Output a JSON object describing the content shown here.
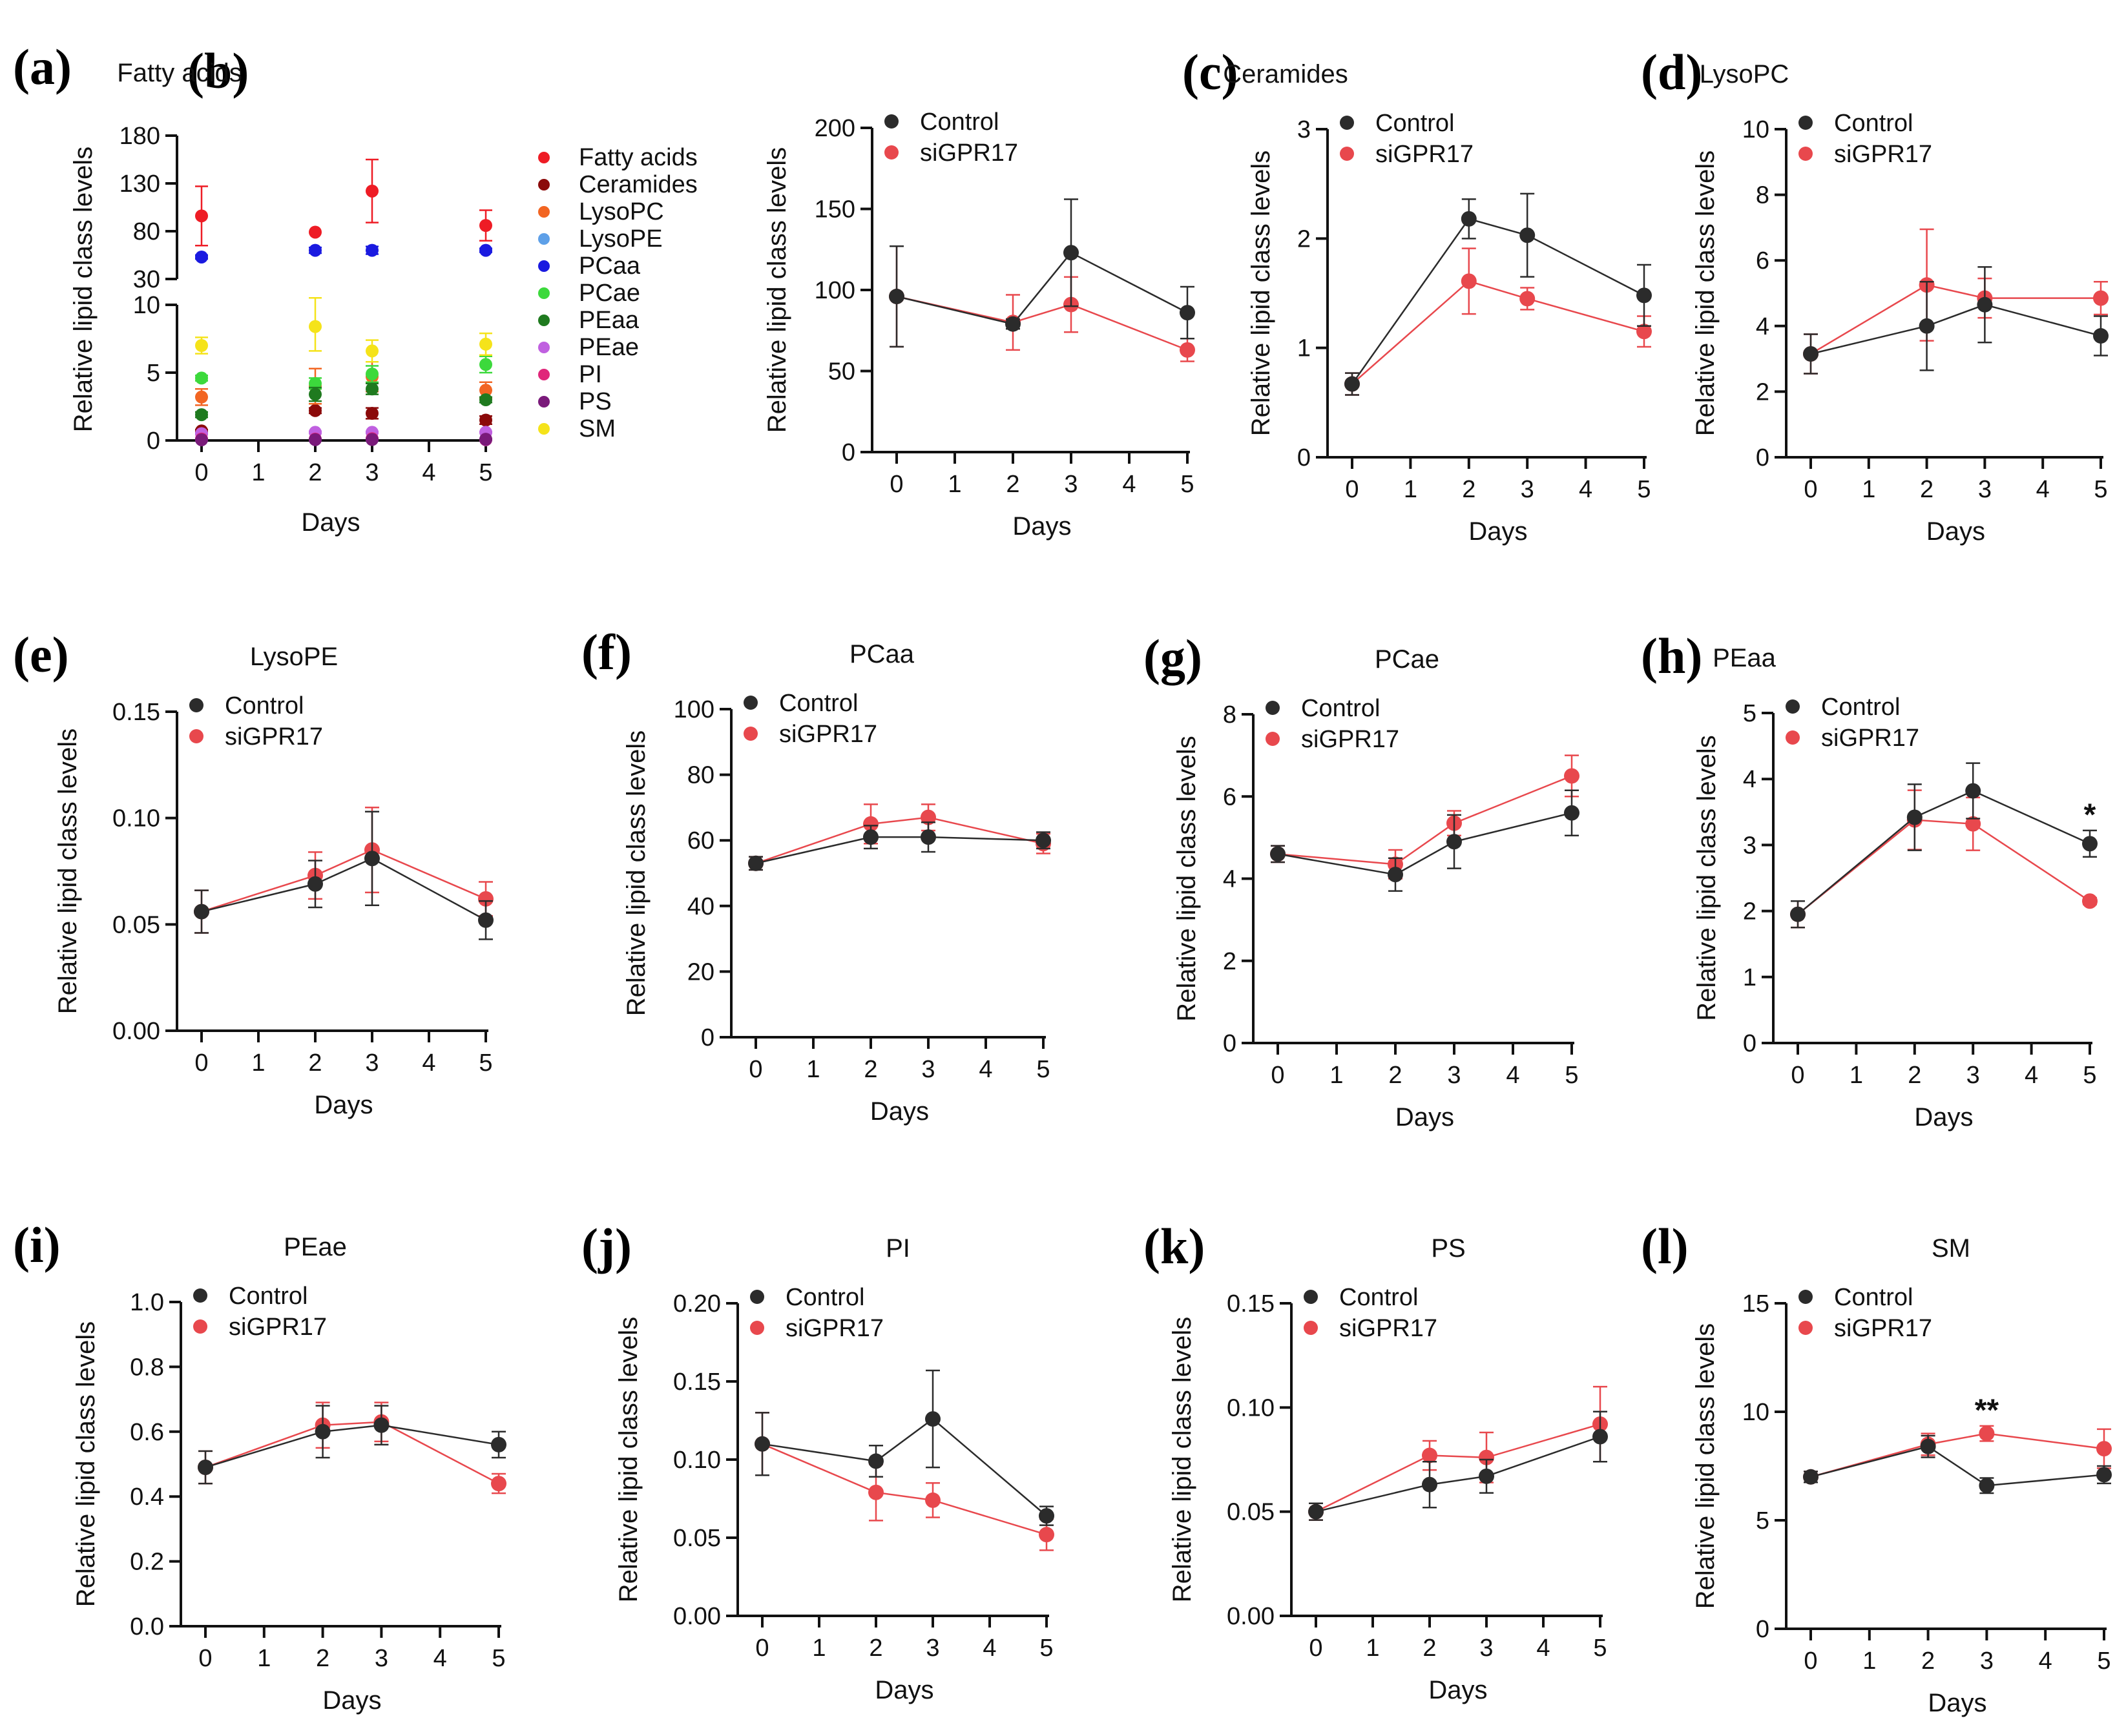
{
  "figure": {
    "x_label": "Days",
    "y_label": "Relative lipid class levels",
    "series_names": [
      "Control",
      "siGPR17"
    ],
    "colors": {
      "Control": "#2b2b2b",
      "siGPR17": "#e8484d"
    }
  },
  "chart_data": [
    {
      "panel": "(a)",
      "type": "scatter",
      "title": "",
      "xlabel": "Days",
      "ylabel": "Relative lipid class levels",
      "x": [
        0,
        2,
        3,
        5
      ],
      "xticks": [
        "0",
        "1",
        "2",
        "3",
        "4",
        "5"
      ],
      "xlim": [
        0,
        5
      ],
      "broken_axis": true,
      "ylim_lower": [
        0,
        10
      ],
      "yticks_lower": [
        "0",
        "5",
        "10"
      ],
      "ylim_upper": [
        30,
        180
      ],
      "yticks_upper": [
        "30",
        "80",
        "130",
        "180"
      ],
      "legend_position": "right",
      "series": [
        {
          "name": "Fatty acids",
          "color": "#ee1c25",
          "values": [
            96,
            79,
            122,
            86
          ],
          "errors": [
            31,
            0,
            33,
            16
          ]
        },
        {
          "name": "Ceramides",
          "color": "#8b0a0a",
          "values": [
            0.7,
            2.2,
            2.0,
            1.5
          ],
          "errors": [
            0.1,
            0.2,
            0.4,
            0.3
          ]
        },
        {
          "name": "LysoPC",
          "color": "#f26522",
          "values": [
            3.2,
            4.0,
            4.7,
            3.7
          ],
          "errors": [
            0.6,
            1.3,
            1.1,
            0.6
          ]
        },
        {
          "name": "LysoPE",
          "color": "#5ea0e8",
          "values": [
            0.06,
            0.07,
            0.08,
            0.05
          ],
          "errors": [
            0.01,
            0.01,
            0.02,
            0.01
          ]
        },
        {
          "name": "PCaa",
          "color": "#1a1ae0",
          "values": [
            53,
            60,
            60,
            60
          ],
          "errors": [
            2,
            3,
            4,
            2
          ]
        },
        {
          "name": "PCae",
          "color": "#3cd93c",
          "values": [
            4.6,
            4.2,
            4.9,
            5.6
          ],
          "errors": [
            0.2,
            0.4,
            0.6,
            0.6
          ]
        },
        {
          "name": "PEaa",
          "color": "#1f7a1f",
          "values": [
            1.9,
            3.4,
            3.8,
            3.0
          ],
          "errors": [
            0.2,
            0.5,
            0.4,
            0.2
          ]
        },
        {
          "name": "PEae",
          "color": "#c060e0",
          "values": [
            0.5,
            0.6,
            0.6,
            0.6
          ],
          "errors": [
            0.05,
            0.08,
            0.06,
            0.04
          ]
        },
        {
          "name": "PI",
          "color": "#e0267a",
          "values": [
            0.11,
            0.1,
            0.13,
            0.06
          ],
          "errors": [
            0.02,
            0.01,
            0.03,
            0.01
          ]
        },
        {
          "name": "PS",
          "color": "#7a1a7a",
          "values": [
            0.05,
            0.06,
            0.07,
            0.09
          ],
          "errors": [
            0.01,
            0.01,
            0.01,
            0.01
          ]
        },
        {
          "name": "SM",
          "color": "#f5e31a",
          "values": [
            7.0,
            8.4,
            6.6,
            7.1
          ],
          "errors": [
            0.6,
            1.8,
            0.8,
            0.8
          ]
        }
      ]
    },
    {
      "panel": "(b)",
      "type": "line",
      "title": "Fatty acids",
      "x": [
        0,
        2,
        3,
        5
      ],
      "ylim": [
        0,
        200
      ],
      "yticks": [
        "0",
        "50",
        "100",
        "150",
        "200"
      ],
      "series": [
        {
          "name": "Control",
          "values": [
            96,
            79,
            123,
            86
          ],
          "errors": [
            31,
            3,
            33,
            16
          ]
        },
        {
          "name": "siGPR17",
          "values": [
            96,
            80,
            91,
            63
          ],
          "errors": [
            31,
            17,
            17,
            7
          ]
        }
      ],
      "annotations": []
    },
    {
      "panel": "(c)",
      "type": "line",
      "title": "Ceramides",
      "x": [
        0,
        2,
        3,
        5
      ],
      "ylim": [
        0,
        3
      ],
      "yticks": [
        "0",
        "1",
        "2",
        "3"
      ],
      "series": [
        {
          "name": "Control",
          "values": [
            0.67,
            2.18,
            2.03,
            1.48
          ],
          "errors": [
            0.1,
            0.18,
            0.38,
            0.28
          ]
        },
        {
          "name": "siGPR17",
          "values": [
            0.67,
            1.61,
            1.45,
            1.15
          ],
          "errors": [
            0.1,
            0.3,
            0.1,
            0.14
          ]
        }
      ],
      "annotations": []
    },
    {
      "panel": "(d)",
      "type": "line",
      "title": "LysoPC",
      "x": [
        0,
        2,
        3,
        5
      ],
      "ylim": [
        0,
        10
      ],
      "yticks": [
        "0",
        "2",
        "4",
        "6",
        "8",
        "10"
      ],
      "series": [
        {
          "name": "Control",
          "values": [
            3.15,
            4.0,
            4.65,
            3.7
          ],
          "errors": [
            0.6,
            1.35,
            1.15,
            0.6
          ]
        },
        {
          "name": "siGPR17",
          "values": [
            3.15,
            5.25,
            4.85,
            4.85
          ],
          "errors": [
            0.6,
            1.7,
            0.6,
            0.5
          ]
        }
      ],
      "annotations": []
    },
    {
      "panel": "(e)",
      "type": "line",
      "title": "LysoPE",
      "x": [
        0,
        2,
        3,
        5
      ],
      "ylim": [
        0,
        0.15
      ],
      "yticks": [
        "0.00",
        "0.05",
        "0.10",
        "0.15"
      ],
      "series": [
        {
          "name": "Control",
          "values": [
            0.056,
            0.069,
            0.081,
            0.052
          ],
          "errors": [
            0.01,
            0.011,
            0.022,
            0.009
          ]
        },
        {
          "name": "siGPR17",
          "values": [
            0.056,
            0.073,
            0.085,
            0.062
          ],
          "errors": [
            0.01,
            0.011,
            0.02,
            0.008
          ]
        }
      ],
      "annotations": []
    },
    {
      "panel": "(f)",
      "type": "line",
      "title": "PCaa",
      "x": [
        0,
        2,
        3,
        5
      ],
      "ylim": [
        0,
        100
      ],
      "yticks": [
        "0",
        "20",
        "40",
        "60",
        "80",
        "100"
      ],
      "series": [
        {
          "name": "Control",
          "values": [
            53,
            61,
            61,
            60
          ],
          "errors": [
            2,
            3.5,
            4.5,
            2.5
          ]
        },
        {
          "name": "siGPR17",
          "values": [
            53,
            65,
            67,
            59
          ],
          "errors": [
            2,
            6,
            4,
            3
          ]
        }
      ],
      "annotations": []
    },
    {
      "panel": "(g)",
      "type": "line",
      "title": "PCae",
      "x": [
        0,
        2,
        3,
        5
      ],
      "ylim": [
        0,
        8
      ],
      "yticks": [
        "0",
        "2",
        "4",
        "6",
        "8"
      ],
      "series": [
        {
          "name": "Control",
          "values": [
            4.6,
            4.1,
            4.9,
            5.6
          ],
          "errors": [
            0.2,
            0.4,
            0.65,
            0.55
          ]
        },
        {
          "name": "siGPR17",
          "values": [
            4.6,
            4.35,
            5.35,
            6.5
          ],
          "errors": [
            0.2,
            0.35,
            0.3,
            0.5
          ]
        }
      ],
      "annotations": []
    },
    {
      "panel": "(h)",
      "type": "line",
      "title": "PEaa",
      "x": [
        0,
        2,
        3,
        5
      ],
      "ylim": [
        0,
        5
      ],
      "yticks": [
        "0",
        "1",
        "2",
        "3",
        "4",
        "5"
      ],
      "series": [
        {
          "name": "Control",
          "values": [
            1.95,
            3.42,
            3.82,
            3.02
          ],
          "errors": [
            0.2,
            0.5,
            0.42,
            0.2
          ]
        },
        {
          "name": "siGPR17",
          "values": [
            1.95,
            3.38,
            3.32,
            2.15
          ],
          "errors": [
            0.2,
            0.45,
            0.4,
            0.05
          ]
        }
      ],
      "annotations": [
        {
          "x": 5,
          "y": 3.4,
          "text": "*"
        }
      ]
    },
    {
      "panel": "(i)",
      "type": "line",
      "title": "PEae",
      "x": [
        0,
        2,
        3,
        5
      ],
      "ylim": [
        0,
        1.0
      ],
      "yticks": [
        "0.0",
        "0.2",
        "0.4",
        "0.6",
        "0.8",
        "1.0"
      ],
      "series": [
        {
          "name": "Control",
          "values": [
            0.49,
            0.6,
            0.62,
            0.56
          ],
          "errors": [
            0.05,
            0.08,
            0.06,
            0.04
          ]
        },
        {
          "name": "siGPR17",
          "values": [
            0.49,
            0.62,
            0.63,
            0.44
          ],
          "errors": [
            0.05,
            0.07,
            0.06,
            0.03
          ]
        }
      ],
      "annotations": []
    },
    {
      "panel": "(j)",
      "type": "line",
      "title": "PI",
      "x": [
        0,
        2,
        3,
        5
      ],
      "ylim": [
        0,
        0.2
      ],
      "yticks": [
        "0.00",
        "0.05",
        "0.10",
        "0.15",
        "0.20"
      ],
      "series": [
        {
          "name": "Control",
          "values": [
            0.11,
            0.099,
            0.126,
            0.064
          ],
          "errors": [
            0.02,
            0.01,
            0.031,
            0.006
          ]
        },
        {
          "name": "siGPR17",
          "values": [
            0.11,
            0.079,
            0.074,
            0.052
          ],
          "errors": [
            0.02,
            0.018,
            0.011,
            0.01
          ]
        }
      ],
      "annotations": []
    },
    {
      "panel": "(k)",
      "type": "line",
      "title": "PS",
      "x": [
        0,
        2,
        3,
        5
      ],
      "ylim": [
        0,
        0.15
      ],
      "yticks": [
        "0.00",
        "0.05",
        "0.10",
        "0.15"
      ],
      "series": [
        {
          "name": "Control",
          "values": [
            0.05,
            0.063,
            0.067,
            0.086
          ],
          "errors": [
            0.004,
            0.011,
            0.008,
            0.012
          ]
        },
        {
          "name": "siGPR17",
          "values": [
            0.05,
            0.077,
            0.076,
            0.092
          ],
          "errors": [
            0.004,
            0.007,
            0.012,
            0.018
          ]
        }
      ],
      "annotations": []
    },
    {
      "panel": "(l)",
      "type": "line",
      "title": "SM",
      "x": [
        0,
        2,
        3,
        5
      ],
      "ylim": [
        0,
        15
      ],
      "yticks": [
        "0",
        "5",
        "10",
        "15"
      ],
      "series": [
        {
          "name": "Control",
          "values": [
            7.0,
            8.4,
            6.6,
            7.1
          ],
          "errors": [
            0.25,
            0.5,
            0.35,
            0.4
          ]
        },
        {
          "name": "siGPR17",
          "values": [
            7.0,
            8.5,
            9.0,
            8.3
          ],
          "errors": [
            0.25,
            0.5,
            0.35,
            0.9
          ]
        }
      ],
      "annotations": [
        {
          "x": 3,
          "y": 9.9,
          "text": "**"
        }
      ]
    }
  ]
}
